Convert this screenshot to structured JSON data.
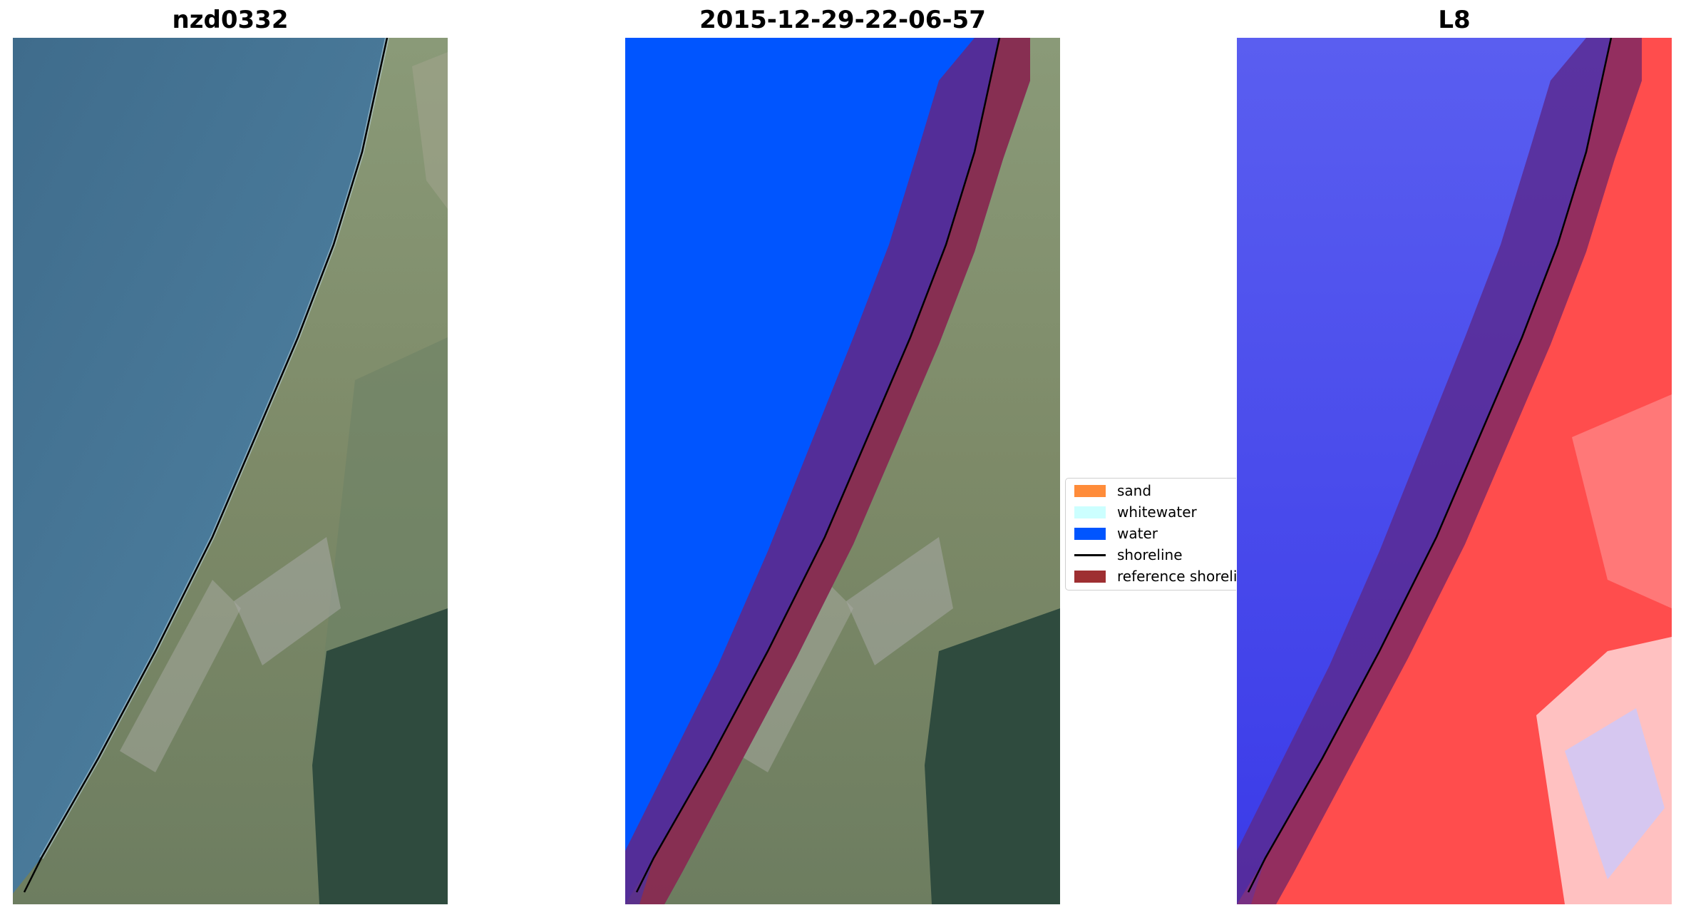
{
  "figure": {
    "panels": [
      {
        "title": "nzd0332",
        "kind": "rgb"
      },
      {
        "title": "2015-12-29-22-06-57",
        "kind": "classified"
      },
      {
        "title": "L8",
        "kind": "water_index"
      }
    ]
  },
  "legend": {
    "placement": "center-right",
    "items": [
      {
        "label": "sand",
        "type": "patch",
        "color": "#ff8c3a"
      },
      {
        "label": "whitewater",
        "type": "patch",
        "color": "#ccffff"
      },
      {
        "label": "water",
        "type": "patch",
        "color": "#0055ff"
      },
      {
        "label": "shoreline",
        "type": "line",
        "color": "#000000"
      },
      {
        "label": "reference shoreline buffer",
        "type": "patch",
        "color": "#9e2f32"
      }
    ]
  },
  "colors": {
    "sea_rgb": "#4a7a99",
    "land_rgb": "#7f8c6a",
    "forest_rgb": "#2e4a3c",
    "water_class": "#0055ff",
    "buffer_over_water": "#5a2a8f",
    "buffer_over_land": "#8e2f48",
    "index_water": "#4848ee",
    "index_land": "#ff4d4d",
    "shoreline": "#000000"
  }
}
